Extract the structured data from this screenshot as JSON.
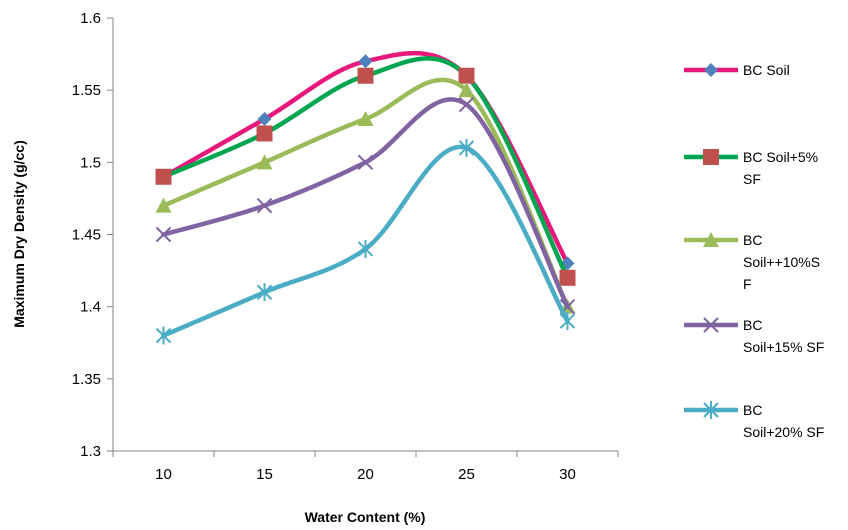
{
  "chart_data": {
    "type": "line",
    "title": "",
    "xlabel": "Water Content (%)",
    "ylabel": "Maximum Dry Density (g/cc)",
    "categories": [
      "10",
      "15",
      "20",
      "25",
      "30"
    ],
    "ylim": [
      1.3,
      1.6
    ],
    "yticks": [
      "1.3",
      "1.35",
      "1.4",
      "1.45",
      "1.5",
      "1.55",
      "1.6"
    ],
    "grid": false,
    "smooth": true,
    "legend_position": "right",
    "series": [
      {
        "name": "BC Soil",
        "legend_lines": [
          "BC Soil"
        ],
        "color": "#e8197c",
        "marker": "diamond",
        "marker_color": "#4f81bd",
        "values": [
          1.49,
          1.53,
          1.57,
          1.56,
          1.43
        ]
      },
      {
        "name": "BC Soil+5% SF",
        "legend_lines": [
          "BC Soil+5%",
          "SF"
        ],
        "color": "#00a550",
        "marker": "square",
        "marker_color": "#c0504d",
        "values": [
          1.49,
          1.52,
          1.56,
          1.56,
          1.42
        ]
      },
      {
        "name": "BC Soil++10%SF",
        "legend_lines": [
          "BC",
          "Soil++10%S",
          "F"
        ],
        "color": "#9bbb59",
        "marker": "triangle",
        "marker_color": "#9bbb59",
        "values": [
          1.47,
          1.5,
          1.53,
          1.55,
          1.4
        ]
      },
      {
        "name": "BC Soil+15% SF",
        "legend_lines": [
          "BC",
          "Soil+15% SF"
        ],
        "color": "#8064a2",
        "marker": "x",
        "marker_color": "#8064a2",
        "values": [
          1.45,
          1.47,
          1.5,
          1.54,
          1.4
        ]
      },
      {
        "name": "BC Soil+20% SF",
        "legend_lines": [
          "BC",
          "Soil+20% SF"
        ],
        "color": "#4bacc6",
        "marker": "star",
        "marker_color": "#4bacc6",
        "values": [
          1.38,
          1.41,
          1.44,
          1.51,
          1.39
        ]
      }
    ]
  }
}
